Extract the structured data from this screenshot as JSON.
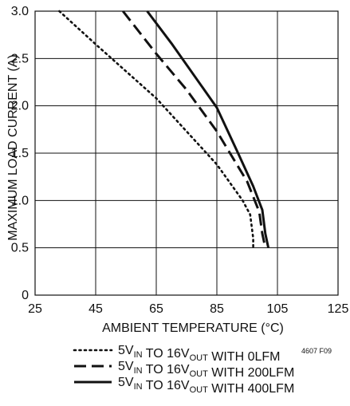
{
  "chart_data": {
    "type": "line",
    "title": "",
    "xlabel": "AMBIENT TEMPERATURE (°C)",
    "ylabel": "MAXIMUM LOAD CURRENT (A)",
    "xlim": [
      25,
      125
    ],
    "ylim": [
      0,
      3.0
    ],
    "xticks": [
      "25",
      "45",
      "65",
      "85",
      "105",
      "125"
    ],
    "yticks": [
      "0",
      "0.5",
      "1.0",
      "1.5",
      "2.0",
      "2.5",
      "3.0"
    ],
    "grid": true,
    "figure_id": "4607 F09",
    "legend_position": "bottom",
    "series": [
      {
        "name": "5VIN TO 16VOUT WITH 0LFM",
        "vin_base": "5V",
        "vin_sub": "IN",
        "mid": " TO 16V",
        "vout_sub": "OUT",
        "suffix": " WITH 0LFM",
        "line_style": "dotted",
        "color": "#111111",
        "x": [
          33,
          45,
          65,
          85,
          93.5,
          96,
          97,
          97
        ],
        "y": [
          3.0,
          2.65,
          2.08,
          1.38,
          1.0,
          0.85,
          0.6,
          0.5
        ]
      },
      {
        "name": "5VIN TO 16VOUT WITH 200LFM",
        "vin_base": "5V",
        "vin_sub": "IN",
        "mid": " TO 16V",
        "vout_sub": "OUT",
        "suffix": " WITH 200LFM",
        "line_style": "dashed",
        "color": "#111111",
        "x": [
          54,
          65,
          75,
          85,
          95,
          99,
          100,
          101
        ],
        "y": [
          3.0,
          2.55,
          2.17,
          1.73,
          1.2,
          0.88,
          0.65,
          0.5
        ]
      },
      {
        "name": "5VIN TO 16VOUT WITH 400LFM",
        "vin_base": "5V",
        "vin_sub": "IN",
        "mid": " TO 16V",
        "vout_sub": "OUT",
        "suffix": " WITH 400LFM",
        "line_style": "solid",
        "color": "#111111",
        "x": [
          62,
          70,
          85,
          92,
          97,
          100,
          101,
          102
        ],
        "y": [
          3.0,
          2.66,
          1.98,
          1.5,
          1.15,
          0.9,
          0.65,
          0.5
        ]
      }
    ]
  }
}
